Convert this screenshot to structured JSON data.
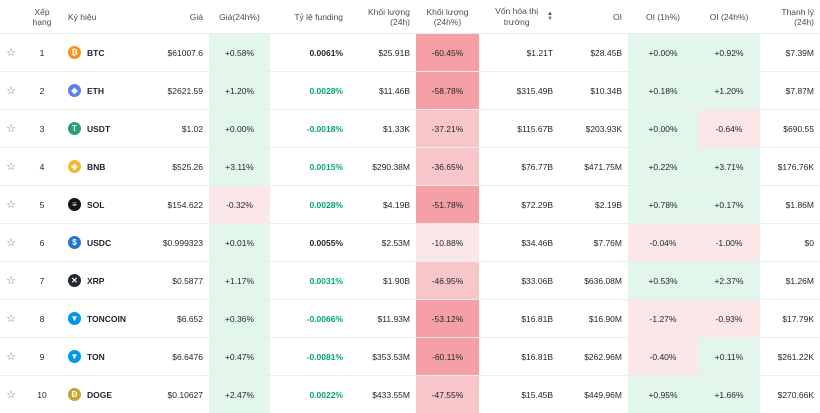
{
  "headers": {
    "rank": "Xếp hạng",
    "symbol": "Ký hiệu",
    "price": "Giá",
    "price_change": "Giá(24h%)",
    "funding": "Tỷ lệ funding",
    "volume": "Khối lượng (24h)",
    "volume_change": "Khối lượng (24h%)",
    "market_cap": "Vốn hóa thị trường",
    "oi": "OI",
    "oi_1h": "OI (1h%)",
    "oi_24h": "OI (24h%)",
    "liquidation": "Thanh lý (24h)"
  },
  "colors": {
    "green_strong": "#bfe9d3",
    "green_light": "#e3f6ec",
    "red_strong": "#f4a0a6",
    "red_mid": "#f8c6c9",
    "red_light": "#fce7e8",
    "funding_positive": "#03a66d"
  },
  "rows": [
    {
      "rank": "1",
      "symbol": "BTC",
      "icon": "btc-icon",
      "icon_color": "#f7931a",
      "icon_glyph": "₿",
      "price": "$61007.6",
      "price_change": "+0.58%",
      "price_tint": "green_light",
      "funding": "0.0061%",
      "funding_tone": "neu",
      "volume": "$25.91B",
      "volume_change": "-60.45%",
      "volume_tint": "red_strong",
      "market_cap": "$1.21T",
      "oi": "$28.45B",
      "oi_1h": "+0.00%",
      "oi_1h_tint": "green_light",
      "oi_24h": "+0.92%",
      "oi_24h_tint": "green_light",
      "liquidation": "$7.39M"
    },
    {
      "rank": "2",
      "symbol": "ETH",
      "icon": "eth-icon",
      "icon_color": "#627eea",
      "icon_glyph": "◆",
      "price": "$2621.59",
      "price_change": "+1.20%",
      "price_tint": "green_light",
      "funding": "0.0028%",
      "funding_tone": "pos",
      "volume": "$11.46B",
      "volume_change": "-58.78%",
      "volume_tint": "red_strong",
      "market_cap": "$315.49B",
      "oi": "$10.34B",
      "oi_1h": "+0.18%",
      "oi_1h_tint": "green_light",
      "oi_24h": "+1.20%",
      "oi_24h_tint": "green_light",
      "liquidation": "$7.87M"
    },
    {
      "rank": "3",
      "symbol": "USDT",
      "icon": "usdt-icon",
      "icon_color": "#26a17b",
      "icon_glyph": "T",
      "price": "$1.02",
      "price_change": "+0.00%",
      "price_tint": "green_light",
      "funding": "-0.0018%",
      "funding_tone": "pos",
      "volume": "$1.33K",
      "volume_change": "-37.21%",
      "volume_tint": "red_mid",
      "market_cap": "$115.67B",
      "oi": "$203.93K",
      "oi_1h": "+0.00%",
      "oi_1h_tint": "green_light",
      "oi_24h": "-0.64%",
      "oi_24h_tint": "red_light",
      "liquidation": "$690.55"
    },
    {
      "rank": "4",
      "symbol": "BNB",
      "icon": "bnb-icon",
      "icon_color": "#f3ba2f",
      "icon_glyph": "◈",
      "price": "$525.26",
      "price_change": "+3.11%",
      "price_tint": "green_light",
      "funding": "0.0015%",
      "funding_tone": "pos",
      "volume": "$290.38M",
      "volume_change": "-36.65%",
      "volume_tint": "red_mid",
      "market_cap": "$76.77B",
      "oi": "$471.75M",
      "oi_1h": "+0.22%",
      "oi_1h_tint": "green_light",
      "oi_24h": "+3.71%",
      "oi_24h_tint": "green_light",
      "liquidation": "$176.76K"
    },
    {
      "rank": "5",
      "symbol": "SOL",
      "icon": "sol-icon",
      "icon_color": "#14151a",
      "icon_glyph": "≡",
      "price": "$154.622",
      "price_change": "-0.32%",
      "price_tint": "red_light",
      "funding": "0.0028%",
      "funding_tone": "pos",
      "volume": "$4.19B",
      "volume_change": "-51.78%",
      "volume_tint": "red_strong",
      "market_cap": "$72.29B",
      "oi": "$2.19B",
      "oi_1h": "+0.78%",
      "oi_1h_tint": "green_light",
      "oi_24h": "+0.17%",
      "oi_24h_tint": "green_light",
      "liquidation": "$1.86M"
    },
    {
      "rank": "6",
      "symbol": "USDC",
      "icon": "usdc-icon",
      "icon_color": "#2775ca",
      "icon_glyph": "$",
      "price": "$0.999323",
      "price_change": "+0.01%",
      "price_tint": "green_light",
      "funding": "0.0055%",
      "funding_tone": "neu",
      "volume": "$2.53M",
      "volume_change": "-10.88%",
      "volume_tint": "red_light",
      "market_cap": "$34.46B",
      "oi": "$7.76M",
      "oi_1h": "-0.04%",
      "oi_1h_tint": "red_light",
      "oi_24h": "-1.00%",
      "oi_24h_tint": "red_light",
      "liquidation": "$0"
    },
    {
      "rank": "7",
      "symbol": "XRP",
      "icon": "xrp-icon",
      "icon_color": "#23292f",
      "icon_glyph": "✕",
      "price": "$0.5877",
      "price_change": "+1.17%",
      "price_tint": "green_light",
      "funding": "0.0031%",
      "funding_tone": "pos",
      "volume": "$1.90B",
      "volume_change": "-46.95%",
      "volume_tint": "red_mid",
      "market_cap": "$33.06B",
      "oi": "$636.08M",
      "oi_1h": "+0.53%",
      "oi_1h_tint": "green_light",
      "oi_24h": "+2.37%",
      "oi_24h_tint": "green_light",
      "liquidation": "$1.26M"
    },
    {
      "rank": "8",
      "symbol": "TONCOIN",
      "icon": "toncoin-icon",
      "icon_color": "#0098ea",
      "icon_glyph": "▼",
      "price": "$6.652",
      "price_change": "+0.36%",
      "price_tint": "green_light",
      "funding": "-0.0066%",
      "funding_tone": "pos",
      "volume": "$11.93M",
      "volume_change": "-53.12%",
      "volume_tint": "red_strong",
      "market_cap": "$16.81B",
      "oi": "$16.90M",
      "oi_1h": "-1.27%",
      "oi_1h_tint": "red_light",
      "oi_24h": "-0.93%",
      "oi_24h_tint": "red_light",
      "liquidation": "$17.79K"
    },
    {
      "rank": "9",
      "symbol": "TON",
      "icon": "ton-icon",
      "icon_color": "#0098ea",
      "icon_glyph": "▼",
      "price": "$6.6476",
      "price_change": "+0.47%",
      "price_tint": "green_light",
      "funding": "-0.0081%",
      "funding_tone": "pos",
      "volume": "$353.53M",
      "volume_change": "-60.11%",
      "volume_tint": "red_strong",
      "market_cap": "$16.81B",
      "oi": "$262.96M",
      "oi_1h": "-0.40%",
      "oi_1h_tint": "red_light",
      "oi_24h": "+0.11%",
      "oi_24h_tint": "green_light",
      "liquidation": "$261.22K"
    },
    {
      "rank": "10",
      "symbol": "DOGE",
      "icon": "doge-icon",
      "icon_color": "#c2a633",
      "icon_glyph": "Ð",
      "price": "$0.10627",
      "price_change": "+2.47%",
      "price_tint": "green_light",
      "funding": "0.0022%",
      "funding_tone": "pos",
      "volume": "$433.55M",
      "volume_change": "-47.55%",
      "volume_tint": "red_mid",
      "market_cap": "$15.45B",
      "oi": "$449.96M",
      "oi_1h": "+0.95%",
      "oi_1h_tint": "green_light",
      "oi_24h": "+1.66%",
      "oi_24h_tint": "green_light",
      "liquidation": "$270.66K"
    }
  ]
}
